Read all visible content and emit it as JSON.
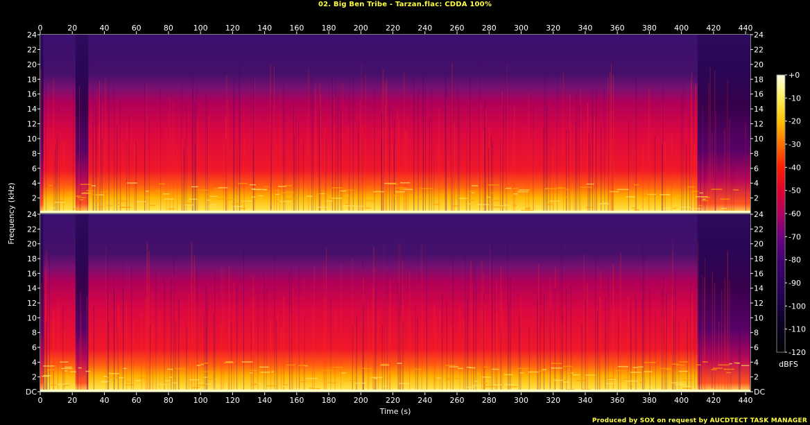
{
  "header": {
    "title": "02. Big Ben Tribe - Tarzan.flac: CDDA 100%"
  },
  "footer": {
    "credit": "Produced by SOX on request by AUCDTECT TASK MANAGER"
  },
  "chart_data": {
    "type": "heatmap",
    "title": "02. Big Ben Tribe - Tarzan.flac: CDDA 100%",
    "xlabel": "Time (s)",
    "ylabel": "Frequency (kHz)",
    "xlim": [
      0,
      443
    ],
    "ylim": [
      0,
      24
    ],
    "x_ticks": [
      "0",
      "20",
      "40",
      "60",
      "80",
      "100",
      "120",
      "140",
      "160",
      "180",
      "200",
      "220",
      "240",
      "260",
      "280",
      "300",
      "320",
      "340",
      "360",
      "380",
      "400",
      "420",
      "440"
    ],
    "y_ticks_top": [
      "24",
      "22",
      "20",
      "18",
      "16",
      "14",
      "12",
      "10",
      "8",
      "6",
      "4",
      "2"
    ],
    "y_ticks_bottom": [
      "24",
      "22",
      "20",
      "18",
      "16",
      "14",
      "12",
      "10",
      "8",
      "6",
      "4",
      "2",
      "DC"
    ],
    "channels": 2,
    "colorbar": {
      "label": "dBFS",
      "range": [
        -120,
        0
      ],
      "ticks": [
        "+0",
        "-10",
        "-20",
        "-30",
        "-40",
        "-50",
        "-60",
        "-70",
        "-80",
        "-90",
        "-100",
        "-110",
        "-120"
      ],
      "colors": [
        "#ffffe8",
        "#fff060",
        "#ffc000",
        "#ff7000",
        "#ff2000",
        "#e00030",
        "#b00060",
        "#700080",
        "#400070",
        "#200050",
        "#0a0020",
        "#000000"
      ]
    },
    "quiet_segments_s": [
      [
        0,
        2
      ],
      [
        22,
        30
      ],
      [
        410,
        443
      ]
    ],
    "colors": {
      "background": "#000000",
      "title": "#ffff40",
      "high_freq": "#3a0a6a",
      "mid_freq": "#e01030",
      "low_freq": "#ffe060"
    }
  }
}
